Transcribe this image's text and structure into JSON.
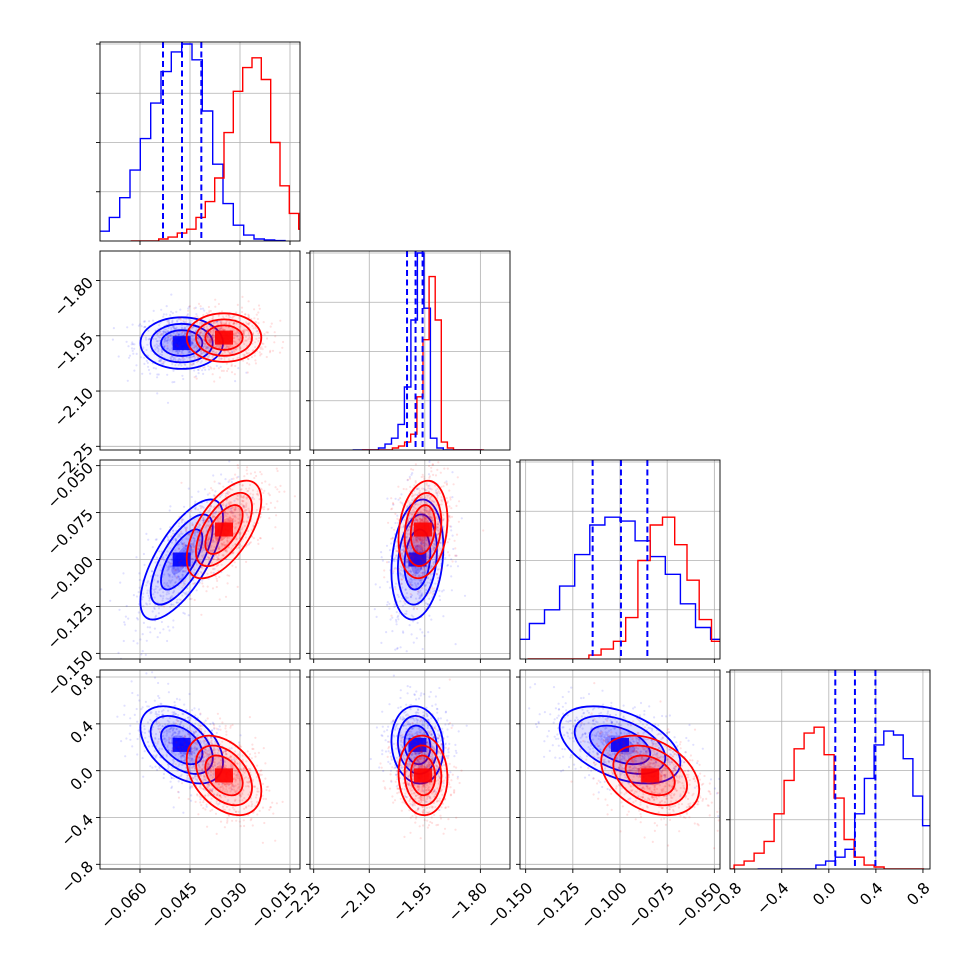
{
  "colors": {
    "series_a": "#0000ff",
    "series_b": "#ff0000",
    "frame": "#000000",
    "grid": "#b0b0b0"
  },
  "chart_data": {
    "type": "corner",
    "title": "",
    "grid": true,
    "parameters": [
      {
        "index": 0,
        "range": [
          -0.072,
          -0.012
        ],
        "ticks": [
          -0.06,
          -0.045,
          -0.03,
          -0.015
        ],
        "tick_labels": [
          "−0.060",
          "−0.045",
          "−0.030",
          "−0.015"
        ]
      },
      {
        "index": 1,
        "range": [
          -2.26,
          -1.72
        ],
        "ticks": [
          -2.25,
          -2.1,
          -1.95,
          -1.8
        ],
        "tick_labels": [
          "−2.25",
          "−2.10",
          "−1.95",
          "−1.80"
        ]
      },
      {
        "index": 2,
        "range": [
          -0.153,
          -0.047
        ],
        "ticks": [
          -0.15,
          -0.125,
          -0.1,
          -0.075,
          -0.05
        ],
        "tick_labels": [
          "−0.150",
          "−0.125",
          "−0.100",
          "−0.075",
          "−0.050"
        ]
      },
      {
        "index": 3,
        "range": [
          -0.84,
          0.86
        ],
        "ticks": [
          -0.8,
          -0.4,
          0.0,
          0.4,
          0.8
        ],
        "tick_labels": [
          "−0.8",
          "−0.4",
          "0.0",
          "0.4",
          "0.8"
        ]
      }
    ],
    "series": [
      {
        "color": "#0000ff",
        "means": [
          -0.0475,
          -1.97,
          -0.1,
          0.22
        ],
        "sigmas": [
          0.0062,
          0.035,
          0.016,
          0.165
        ],
        "correlations": [
          [
            0,
            2,
            0.7
          ],
          [
            0,
            3,
            -0.45
          ],
          [
            1,
            3,
            -0.1
          ],
          [
            2,
            3,
            -0.45
          ],
          [
            1,
            2,
            0.2
          ]
        ],
        "quantiles": [
          [
            -0.0531,
            -0.0474,
            -0.0416
          ],
          [
            -1.998,
            -1.975,
            -1.956
          ],
          [
            -0.1145,
            -0.0995,
            -0.0855
          ],
          [
            0.055,
            0.222,
            0.396
          ]
        ],
        "histograms": [
          [
            0.01,
            0.04,
            0.05,
            0.12,
            0.22,
            0.36,
            0.52,
            0.7,
            0.86,
            0.96,
            1.0,
            0.92,
            0.66,
            0.39,
            0.19,
            0.08,
            0.03,
            0.01,
            0.005,
            0.002
          ],
          [
            0.0,
            0.0,
            0.0,
            0.0,
            0.01,
            0.03,
            0.06,
            0.13,
            0.32,
            0.66,
            1.0,
            0.72,
            0.06,
            0.01,
            0.0,
            0.0,
            0.0,
            0.0,
            0.0,
            0.0
          ],
          [
            0.01,
            0.03,
            0.04,
            0.1,
            0.18,
            0.25,
            0.37,
            0.53,
            0.68,
            0.72,
            0.7,
            0.6,
            0.52,
            0.43,
            0.28,
            0.16,
            0.1,
            0.05,
            0.02,
            0.01
          ],
          [
            0.0,
            0.0,
            0.0,
            0.0,
            0.0,
            0.0,
            0.02,
            0.04,
            0.06,
            0.1,
            0.28,
            0.46,
            0.63,
            0.7,
            0.68,
            0.56,
            0.37,
            0.22,
            0.09,
            0.02
          ]
        ]
      },
      {
        "color": "#ff0000",
        "means": [
          -0.0348,
          -1.955,
          -0.084,
          -0.04
        ],
        "sigmas": [
          0.0056,
          0.033,
          0.013,
          0.17
        ],
        "correlations": [
          [
            0,
            2,
            0.6
          ],
          [
            0,
            3,
            -0.4
          ],
          [
            1,
            3,
            -0.05
          ],
          [
            2,
            3,
            -0.35
          ],
          [
            1,
            2,
            0.2
          ]
        ],
        "quantiles": [],
        "histograms": [
          [
            0.0,
            0.0,
            0.0,
            0.01,
            0.02,
            0.04,
            0.06,
            0.12,
            0.2,
            0.32,
            0.55,
            0.76,
            0.88,
            0.93,
            0.82,
            0.5,
            0.28,
            0.14,
            0.06,
            0.02
          ],
          [
            0.0,
            0.0,
            0.0,
            0.0,
            0.0,
            0.01,
            0.02,
            0.04,
            0.08,
            0.27,
            0.56,
            0.88,
            0.66,
            0.04,
            0.01,
            0.0,
            0.0,
            0.0,
            0.0,
            0.0
          ],
          [
            0.0,
            0.0,
            0.0,
            0.0,
            0.0,
            0.02,
            0.05,
            0.09,
            0.21,
            0.5,
            0.68,
            0.72,
            0.58,
            0.4,
            0.2,
            0.09,
            0.05,
            0.02,
            0.01,
            0.0
          ],
          [
            0.0,
            0.02,
            0.04,
            0.08,
            0.14,
            0.28,
            0.45,
            0.61,
            0.69,
            0.72,
            0.58,
            0.36,
            0.15,
            0.06,
            0.02,
            0.01,
            0.0,
            0.0,
            0.0,
            0.0
          ]
        ]
      }
    ]
  }
}
